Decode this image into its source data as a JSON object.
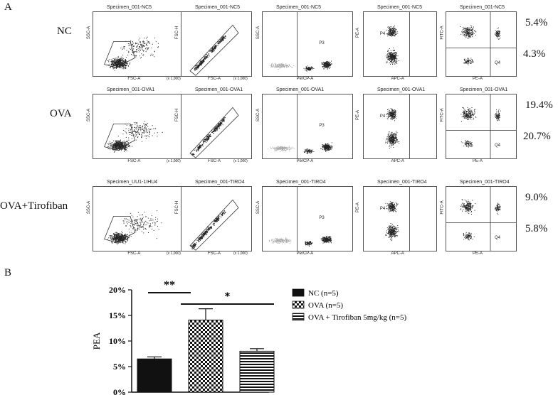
{
  "figure": {
    "panel_a_label": "A",
    "panel_b_label": "B"
  },
  "flow_rows": [
    {
      "name": "NC",
      "titles": [
        "Specimen_001-NC5",
        "Specimen_001-NC5",
        "Specimen_001-NC5",
        "Specimen_001-NC5",
        "Specimen_001-NC5"
      ],
      "pct_top": "5.4%",
      "pct_bottom": "4.3%"
    },
    {
      "name": "OVA",
      "titles": [
        "Specimen_001-OVA1",
        "Specimen_001-OVA1",
        "Specimen_001-OVA1",
        "Specimen_001-OVA1",
        "Specimen_001-OVA1"
      ],
      "pct_top": "19.4%",
      "pct_bottom": "20.7%"
    },
    {
      "name": "OVA+Tirofiban",
      "titles": [
        "Specimen_UU1-1IHU4",
        "Specimen_001-TIRO4",
        "Specimen_001-TIRO4",
        "Specimen_001-TIRO4",
        "Specimen_001-TIRO4"
      ],
      "pct_top": "9.0%",
      "pct_bottom": "5.8%"
    }
  ],
  "axis_labels": {
    "p1_x": "FSC-A",
    "p1_y": "SSC-A",
    "p2_x": "FSC-A",
    "p2_y": "FSC-H",
    "p3_x": "PerCP-A",
    "p3_y": "SSC-A",
    "p4_x": "APC-A",
    "p4_y": "PE-A",
    "p5_x": "PE-A",
    "p5_y": "FITC-A",
    "scale": "(x 1,000)"
  },
  "gates": {
    "p3": "P3",
    "p4": "P4",
    "q1": "Q1",
    "q2": "Q2",
    "q3": "Q3",
    "q4": "Q4"
  },
  "chart_data": {
    "type": "bar",
    "ylabel": "PEA",
    "ylim": [
      0,
      20
    ],
    "yticks": [
      "0%",
      "5%",
      "10%",
      "15%",
      "20%"
    ],
    "categories": [
      "NC (n=5)",
      "OVA (n=5)",
      "OVA + Tirofiban 5mg/kg (n=5)"
    ],
    "values": [
      6.5,
      14.1,
      8.0
    ],
    "errors": [
      0.4,
      2.2,
      0.5
    ],
    "patterns": [
      "solid",
      "checker",
      "stripes"
    ],
    "significance": [
      {
        "from": 0,
        "to": 1,
        "label": "**"
      },
      {
        "from": 1,
        "to": 2,
        "label": "*"
      }
    ]
  }
}
